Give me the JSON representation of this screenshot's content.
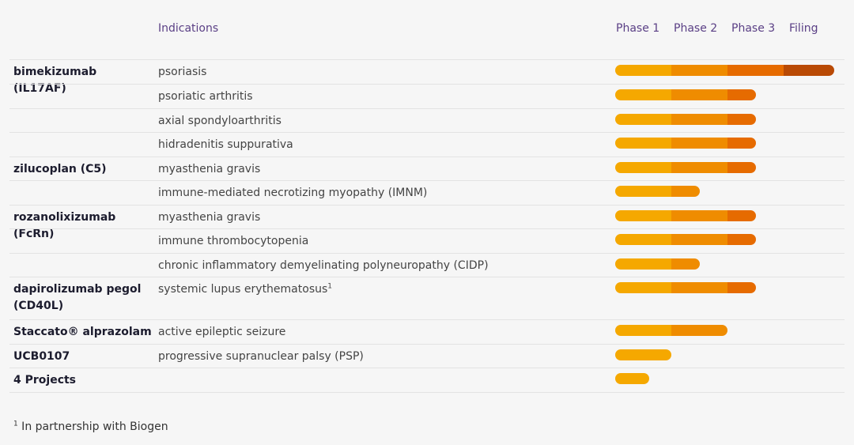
{
  "header": {
    "indications_label": "Indications",
    "phases": [
      "Phase 1",
      "Phase 2",
      "Phase 3",
      "Filing"
    ]
  },
  "colors": {
    "phase_1": "#f5a800",
    "phase_2": "#ef8c00",
    "phase_3": "#e66b00",
    "filing": "#b94a05"
  },
  "chart_data": {
    "type": "bar",
    "stacked": true,
    "orientation": "horizontal",
    "x_categories": [
      "Phase 1",
      "Phase 2",
      "Phase 3",
      "Filing"
    ],
    "rows": [
      {
        "drug": "bimekizumab (IL17AF)",
        "indication": "psoriasis",
        "sup": "",
        "progress": 3.9
      },
      {
        "drug": "",
        "indication": "psoriatic arthritis",
        "sup": "",
        "progress": 2.5
      },
      {
        "drug": "",
        "indication": "axial spondyloarthritis",
        "sup": "",
        "progress": 2.5
      },
      {
        "drug": "",
        "indication": "hidradenitis suppurativa",
        "sup": "",
        "progress": 2.5
      },
      {
        "drug": "zilucoplan (C5)",
        "indication": "myasthenia gravis",
        "sup": "",
        "progress": 2.5
      },
      {
        "drug": "",
        "indication": "immune-mediated necrotizing myopathy (IMNM)",
        "sup": "",
        "progress": 1.5
      },
      {
        "drug": "rozanolixizumab (FcRn)",
        "indication": "myasthenia gravis",
        "sup": "",
        "progress": 2.5
      },
      {
        "drug": "",
        "indication": "immune thrombocytopenia",
        "sup": "",
        "progress": 2.5
      },
      {
        "drug": "",
        "indication": "chronic inflammatory demyelinating polyneuropathy (CIDP)",
        "sup": "",
        "progress": 1.5
      },
      {
        "drug": "dapirolizumab pegol (CD40L)",
        "indication": "systemic lupus erythematosus",
        "sup": "1",
        "progress": 2.5
      },
      {
        "drug": "Staccato® alprazolam",
        "indication": "active epileptic seizure",
        "sup": "",
        "progress": 2.0
      },
      {
        "drug": "UCB0107",
        "indication": "progressive supranuclear palsy (PSP)",
        "sup": "",
        "progress": 1.0
      },
      {
        "drug": "4 Projects",
        "indication": "",
        "sup": "",
        "progress": 0.6
      }
    ]
  },
  "footnote": {
    "marker": "1",
    "text": " In partnership with Biogen"
  }
}
